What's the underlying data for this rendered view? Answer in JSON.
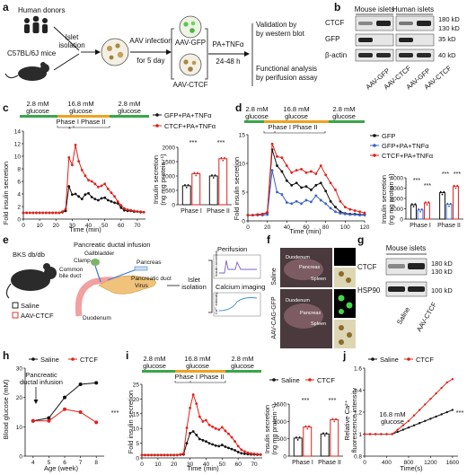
{
  "panel_letters": [
    "a",
    "b",
    "c",
    "d",
    "e",
    "f",
    "g",
    "h",
    "i",
    "j"
  ],
  "colors": {
    "black": "#111111",
    "red": "#e0211b",
    "blue": "#3a62c7",
    "green": "#3aa64a",
    "orange": "#f0a11e",
    "mouse_fill": "#2b2b2b"
  },
  "a": {
    "human_donors": "Human donors",
    "mouse": "C57BL/6J mice",
    "islet_line1": "Islet",
    "islet_line2": "isolation",
    "aav_line1": "AAV infection",
    "aav_line2": "for 5 day",
    "aav_gfp": "AAV-GFP",
    "aav_ctcf": "AAV-CTCF",
    "treat_line1": "PA+TNFα",
    "treat_line2": "24-48 h",
    "out1_line1": "Validation by",
    "out1_line2": "by western blot",
    "out2_line1": "Functional analysis",
    "out2_line2": "by perifusion assay"
  },
  "b": {
    "group_mouse": "Mouse islets",
    "group_human": "Human islets",
    "row_labels": [
      "CTCF",
      "GFP",
      "β-actin"
    ],
    "mw": [
      "180 kD",
      "130 kD",
      "35 kD",
      "40 kD"
    ],
    "lanes": [
      "AAV-GFP",
      "AAV-CTCF",
      "AAV-GFP",
      "AAV-CTCF"
    ]
  },
  "c": {
    "glucose": [
      "2.8 mM",
      "16.8 mM",
      "2.8 mM"
    ],
    "glucose_word": "glucose",
    "phase": "Phase I  Phase II",
    "ylabel": "Fold insulin secretion",
    "xlabel": "Time (min)",
    "legend": [
      "GFP+PA+TNFα",
      "CTCF+PA+TNFα"
    ],
    "bar_ylabel1": "Insulin secretion",
    "bar_ylabel2": "(ng mg protein⁻¹)",
    "bar_categories": [
      "Phase I",
      "Phase II"
    ],
    "sig": [
      "***",
      "***"
    ],
    "star": "*"
  },
  "d": {
    "glucose": [
      "2.8 mM",
      "16.8 mM",
      "2.8 mM"
    ],
    "glucose_word": "glucose",
    "phase": "Phase I  Phase II",
    "ylabel": "Fold insulin secretion",
    "xlabel": "Time (min)",
    "legend": [
      "GFP",
      "GFP+PA+TNFα",
      "CTCF+PA+TNFα"
    ],
    "bar_ylabel1": "Insulin secretion",
    "bar_ylabel2": "(ng mg protein⁻¹)",
    "bar_categories": [
      "Phase I",
      "Phase II"
    ],
    "sig": [
      "***",
      "***",
      "***",
      "***"
    ]
  },
  "e": {
    "strain": "BKS db/db",
    "title": "Pancreatic ductal infusion",
    "labels": [
      "Gallbladder",
      "Clamp",
      "Common",
      "bile duct",
      "Pancreas",
      "Pancreatic duct",
      "Virus",
      "Duodenum"
    ],
    "legend": [
      "Saline",
      "AAV-CTCF"
    ],
    "islet_line1": "Islet",
    "islet_line2": "isolation",
    "perifusion": "Perifusion",
    "insulin_secretion": "Insulin secretion",
    "calcium": "Calcium imaging",
    "ca_intensity": "Ca²⁺ intensity"
  },
  "f": {
    "rows": [
      "Saline",
      "AAV-CAG-GFP"
    ],
    "organs": [
      "Duodenum",
      "Pancreas",
      "Spleen"
    ]
  },
  "g": {
    "title": "Mouse islets",
    "rows": [
      "CTCF",
      "HSP90"
    ],
    "mw": [
      "180 kD",
      "130 kD",
      "100 kD"
    ],
    "lanes": [
      "Saline",
      "AAV-CTCF"
    ]
  },
  "h": {
    "legend": [
      "Saline",
      "CTCF"
    ],
    "annotation1": "Pancreatic",
    "annotation2": "ductal infusion",
    "ylabel": "Blood glucose (mM)",
    "xlabel": "Age (week)",
    "sig": "***"
  },
  "i": {
    "glucose": [
      "2.8 mM",
      "16.8 mM",
      "2.8 mM"
    ],
    "glucose_word": "glucose",
    "phase": "Phase I  Phase II",
    "ylabel": "Fold insulin secretion",
    "xlabel": "Time (min)",
    "legend": [
      "Saline",
      "CTCF"
    ],
    "bar_ylabel1": "Insulin secretion",
    "bar_ylabel2": "(ng mg protein⁻¹)",
    "bar_categories": [
      "Phase I",
      "Phase II"
    ],
    "sig": [
      "***",
      "***"
    ]
  },
  "j": {
    "legend": [
      "Saline",
      "CTCF"
    ],
    "annotation1": "16.8 mM",
    "annotation2": "glucose",
    "ylabel1": "Relative Ca²⁺",
    "ylabel2": "fluorescence intensity",
    "xlabel": "Time(s)",
    "sig": "***"
  },
  "chart_data": [
    {
      "id": "c_line",
      "type": "line",
      "x": [
        0,
        2,
        4,
        6,
        8,
        10,
        12,
        14,
        16,
        18,
        20,
        22,
        24,
        26,
        28,
        30,
        32,
        34,
        36,
        38,
        40,
        42,
        44,
        46,
        48,
        50,
        52,
        54,
        56,
        58,
        60,
        62,
        64,
        66,
        68,
        70,
        72,
        74
      ],
      "series": [
        {
          "name": "GFP+PA+TNFα",
          "values": [
            1,
            1,
            1,
            1,
            1,
            1,
            1,
            1,
            1,
            1,
            1,
            1,
            1.1,
            1.3,
            5.2,
            3.9,
            4.0,
            3.6,
            3.2,
            3.9,
            4.1,
            3.5,
            3.2,
            3.0,
            3.3,
            3.4,
            3.0,
            2.8,
            2.6,
            2.5,
            1.8,
            1.4,
            1.3,
            1.3,
            1.2,
            1.2,
            1.1,
            1.1
          ]
        },
        {
          "name": "CTCF+PA+TNFα",
          "values": [
            1,
            1,
            1,
            1,
            1,
            1,
            1,
            1,
            1,
            1,
            1,
            1,
            1.2,
            1.6,
            9.8,
            8.6,
            11.8,
            9.2,
            7.8,
            6.9,
            6.2,
            6.0,
            5.6,
            5.1,
            5.3,
            5.6,
            4.8,
            4.2,
            3.6,
            2.8,
            2.2,
            1.7,
            1.5,
            1.4,
            1.3,
            1.2,
            1.2,
            1.1
          ]
        }
      ],
      "xlim": [
        0,
        75
      ],
      "ylim": [
        0,
        14
      ],
      "xticks": [
        0,
        10,
        20,
        30,
        40,
        50,
        60,
        70
      ],
      "yticks": [
        0,
        2,
        4,
        6,
        8,
        10,
        12,
        14
      ]
    },
    {
      "id": "c_bar",
      "type": "bar",
      "categories": [
        "Phase I",
        "Phase II"
      ],
      "series": [
        {
          "name": "GFP+PA+TNFα",
          "values": [
            660,
            1000
          ]
        },
        {
          "name": "CTCF+PA+TNFα",
          "values": [
            1080,
            1600
          ]
        }
      ],
      "ylim": [
        0,
        2000
      ],
      "yticks": [
        0,
        500,
        1000,
        1500,
        2000
      ]
    },
    {
      "id": "d_line",
      "type": "line",
      "x": [
        0,
        5,
        10,
        15,
        20,
        25,
        30,
        35,
        40,
        45,
        50,
        55,
        60,
        65,
        70,
        75,
        80,
        85,
        90,
        95,
        100,
        105,
        110,
        115,
        120
      ],
      "series": [
        {
          "name": "GFP",
          "values": [
            1,
            1,
            1.1,
            1.2,
            1.4,
            12.4,
            9.6,
            8.6,
            7.0,
            6.2,
            6.6,
            5.8,
            6.0,
            5.4,
            6.2,
            6.6,
            5.2,
            3.4,
            2.4,
            1.6,
            1.3,
            1.2,
            1.2,
            1.1,
            1.1
          ]
        },
        {
          "name": "GFP+PA+TNFα",
          "values": [
            1,
            1,
            1,
            1,
            1.1,
            8.8,
            5.0,
            4.6,
            3.2,
            3.0,
            3.4,
            3.0,
            3.6,
            3.3,
            4.4,
            3.6,
            3.0,
            2.2,
            1.6,
            1.3,
            1.2,
            1.1,
            1.1,
            1.0,
            1.0
          ]
        },
        {
          "name": "CTCF+PA+TNFα",
          "values": [
            1,
            1,
            1.1,
            1.2,
            1.5,
            13.4,
            11.2,
            11.0,
            9.6,
            8.4,
            8.8,
            9.0,
            8.4,
            8.6,
            8.2,
            9.6,
            8.0,
            6.6,
            5.4,
            3.4,
            2.4,
            2.0,
            1.8,
            1.6,
            1.4
          ]
        }
      ],
      "xlim": [
        0,
        120
      ],
      "ylim": [
        0,
        15
      ],
      "xticks": [
        0,
        20,
        40,
        60,
        80,
        100,
        120
      ],
      "yticks": [
        0,
        5,
        10,
        15
      ]
    },
    {
      "id": "d_bar",
      "type": "bar",
      "categories": [
        "Phase I",
        "Phase II"
      ],
      "series": [
        {
          "name": "GFP",
          "values": [
            1380,
            2560
          ]
        },
        {
          "name": "GFP+PA+TNFα",
          "values": [
            880,
            1420
          ]
        },
        {
          "name": "CTCF+PA+TNFα",
          "values": [
            1560,
            3160
          ]
        }
      ],
      "ylim": [
        0,
        4000
      ],
      "yticks": [
        0,
        1000,
        2000,
        3000,
        4000
      ]
    },
    {
      "id": "h_line",
      "type": "line",
      "x": [
        4,
        5,
        6,
        7,
        8
      ],
      "series": [
        {
          "name": "Saline",
          "values": [
            12,
            13,
            20,
            24.5,
            25
          ]
        },
        {
          "name": "CTCF",
          "values": [
            12,
            12,
            16,
            15,
            11.5
          ]
        }
      ],
      "xlim": [
        3.5,
        8.5
      ],
      "ylim": [
        0,
        30
      ],
      "xticks": [
        4,
        5,
        6,
        7,
        8
      ],
      "yticks": [
        0,
        10,
        20,
        30
      ]
    },
    {
      "id": "i_line",
      "type": "line",
      "x": [
        0,
        2,
        4,
        6,
        8,
        10,
        12,
        14,
        16,
        18,
        20,
        22,
        24,
        26,
        28,
        30,
        32,
        34,
        36,
        38,
        40,
        42,
        44,
        46,
        48,
        50,
        52,
        54,
        56,
        58,
        60,
        62,
        64,
        66,
        68,
        70,
        72,
        74
      ],
      "series": [
        {
          "name": "Saline",
          "values": [
            1,
            1,
            1,
            1,
            1,
            1,
            1,
            1,
            1,
            1,
            1,
            1,
            1.1,
            1.2,
            5.0,
            8.4,
            9.0,
            7.8,
            6.4,
            6.0,
            5.6,
            5.0,
            4.6,
            4.2,
            4.0,
            4.4,
            3.8,
            3.4,
            3.0,
            2.6,
            2.0,
            1.6,
            1.4,
            1.3,
            1.2,
            1.2,
            1.1,
            1.1
          ]
        },
        {
          "name": "CTCF",
          "values": [
            1,
            1,
            1,
            1,
            1,
            1,
            1,
            1,
            1,
            1,
            1,
            1,
            1.2,
            1.5,
            10.2,
            17.0,
            21.5,
            18.4,
            14.0,
            12.4,
            12.8,
            11.2,
            10.6,
            10.0,
            9.6,
            10.4,
            9.2,
            8.2,
            7.0,
            5.6,
            4.0,
            2.8,
            2.2,
            1.8,
            1.5,
            1.4,
            1.3,
            1.2
          ]
        }
      ],
      "xlim": [
        0,
        75
      ],
      "ylim": [
        0,
        25
      ],
      "xticks": [
        0,
        10,
        20,
        30,
        40,
        50,
        60,
        70
      ],
      "yticks": [
        0,
        5,
        10,
        15,
        20,
        25
      ]
    },
    {
      "id": "i_bar",
      "type": "bar",
      "categories": [
        "Phase I",
        "Phase II"
      ],
      "series": [
        {
          "name": "Saline",
          "values": [
            520,
            640
          ]
        },
        {
          "name": "CTCF",
          "values": [
            840,
            1050
          ]
        }
      ],
      "ylim": [
        0,
        1500
      ],
      "yticks": [
        0,
        500,
        1000,
        1500
      ]
    },
    {
      "id": "j_line",
      "type": "line",
      "x": [
        0,
        100,
        200,
        300,
        400,
        500,
        600,
        700,
        800,
        900,
        1000,
        1100,
        1200,
        1300,
        1400,
        1500,
        1600
      ],
      "series": [
        {
          "name": "Saline",
          "values": [
            1.0,
            1.0,
            1.0,
            1.0,
            1.0,
            1.0,
            1.02,
            1.04,
            1.06,
            1.08,
            1.1,
            1.12,
            1.14,
            1.16,
            1.18,
            1.2,
            1.22
          ]
        },
        {
          "name": "CTCF",
          "values": [
            1.0,
            1.0,
            1.0,
            1.0,
            1.0,
            1.0,
            1.04,
            1.08,
            1.12,
            1.17,
            1.22,
            1.27,
            1.32,
            1.37,
            1.42,
            1.47,
            1.5
          ]
        }
      ],
      "xlim": [
        0,
        1700
      ],
      "ylim": [
        0.8,
        1.6
      ],
      "xticks": [
        0,
        400,
        800,
        1200,
        1600
      ],
      "yticks": [
        0.8,
        1.0,
        1.2,
        1.4,
        1.6
      ]
    }
  ]
}
